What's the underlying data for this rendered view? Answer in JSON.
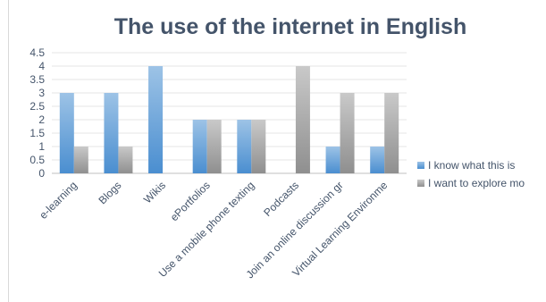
{
  "chart_data": {
    "type": "bar",
    "title": "The use of the internet in English",
    "xlabel": "",
    "ylabel": "",
    "ylim": [
      0,
      4.5
    ],
    "yticks": [
      "0",
      "0.5",
      "1",
      "1.5",
      "2",
      "2.5",
      "3",
      "3.5",
      "4",
      "4.5"
    ],
    "grid": true,
    "legend_position": "right",
    "categories": [
      "e-learning",
      "Blogs",
      "Wikis",
      "ePortfolios",
      "Use a mobile phone texting",
      "Podcasts",
      "Join an online discussion gr",
      "Virtual Learning Environme"
    ],
    "series": [
      {
        "name": "I know what this is",
        "color": "#5b9bd5",
        "values": [
          3,
          3,
          4,
          2,
          2,
          0,
          1,
          1
        ]
      },
      {
        "name": "I want to explore mo",
        "color": "#a5a5a5",
        "values": [
          1,
          1,
          0,
          2,
          2,
          4,
          3,
          3
        ]
      }
    ]
  }
}
